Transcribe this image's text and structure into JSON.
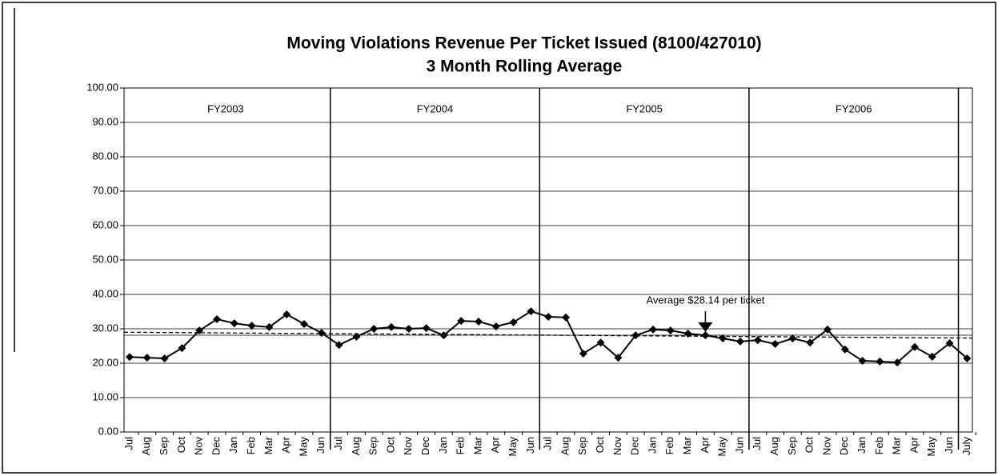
{
  "chart_data": {
    "type": "line",
    "title": "Moving Violations Revenue Per Ticket Issued (8100/427010)",
    "subtitle": "3 Month Rolling Average",
    "categories": [
      "Jul",
      "Aug",
      "Sep",
      "Oct",
      "Nov",
      "Dec",
      "Jan",
      "Feb",
      "Mar",
      "Apr",
      "May",
      "Jun",
      "Jul",
      "Aug",
      "Sep",
      "Oct",
      "Nov",
      "Dec",
      "Jan",
      "Feb",
      "Mar",
      "Apr",
      "May",
      "Jun",
      "Jul",
      "Aug",
      "Sep",
      "Oct",
      "Nov",
      "Dec",
      "Jan",
      "Feb",
      "Mar",
      "Apr",
      "May",
      "Jun",
      "Jul",
      "Aug",
      "Sep",
      "Oct",
      "Nov",
      "Dec",
      "Jan",
      "Feb",
      "Mar",
      "Apr",
      "May",
      "Jun",
      "July"
    ],
    "series": [
      {
        "color": "#000000",
        "values": [
          21.8,
          21.6,
          21.4,
          24.4,
          29.5,
          32.8,
          31.6,
          30.9,
          30.5,
          34.2,
          31.4,
          28.8,
          25.3,
          27.7,
          30.0,
          30.5,
          30.0,
          30.2,
          28.1,
          32.3,
          32.1,
          30.7,
          31.9,
          35.1,
          33.5,
          33.3,
          22.8,
          26.0,
          21.6,
          28.1,
          29.8,
          29.5,
          28.6,
          28.1,
          27.2,
          26.3,
          26.7,
          25.6,
          27.2,
          26.0,
          29.8,
          24.0,
          20.7,
          20.5,
          20.2,
          24.7,
          21.9,
          25.8,
          21.4
        ]
      }
    ],
    "average": 28.14,
    "trend": [
      29.0,
      27.3
    ],
    "annotation": {
      "text": "Average $28.14 per ticket",
      "index": 33
    },
    "periods": [
      {
        "label": "FY2003",
        "start": 0,
        "end": 11
      },
      {
        "label": "FY2004",
        "start": 12,
        "end": 23
      },
      {
        "label": "FY2005",
        "start": 24,
        "end": 35
      },
      {
        "label": "FY2006",
        "start": 36,
        "end": 47
      }
    ],
    "ylim": [
      0,
      100
    ],
    "yticks": [
      {
        "value": 0,
        "label": "0.00"
      },
      {
        "value": 10,
        "label": "10.00"
      },
      {
        "value": 20,
        "label": "20.00"
      },
      {
        "value": 30,
        "label": "30.00"
      },
      {
        "value": 40,
        "label": "40.00"
      },
      {
        "value": 50,
        "label": "50.00"
      },
      {
        "value": 60,
        "label": "60.00"
      },
      {
        "value": 70,
        "label": "70.00"
      },
      {
        "value": 80,
        "label": "80.00"
      },
      {
        "value": 90,
        "label": "90.00"
      },
      {
        "value": 100,
        "label": "100.00"
      }
    ],
    "grid": true
  }
}
